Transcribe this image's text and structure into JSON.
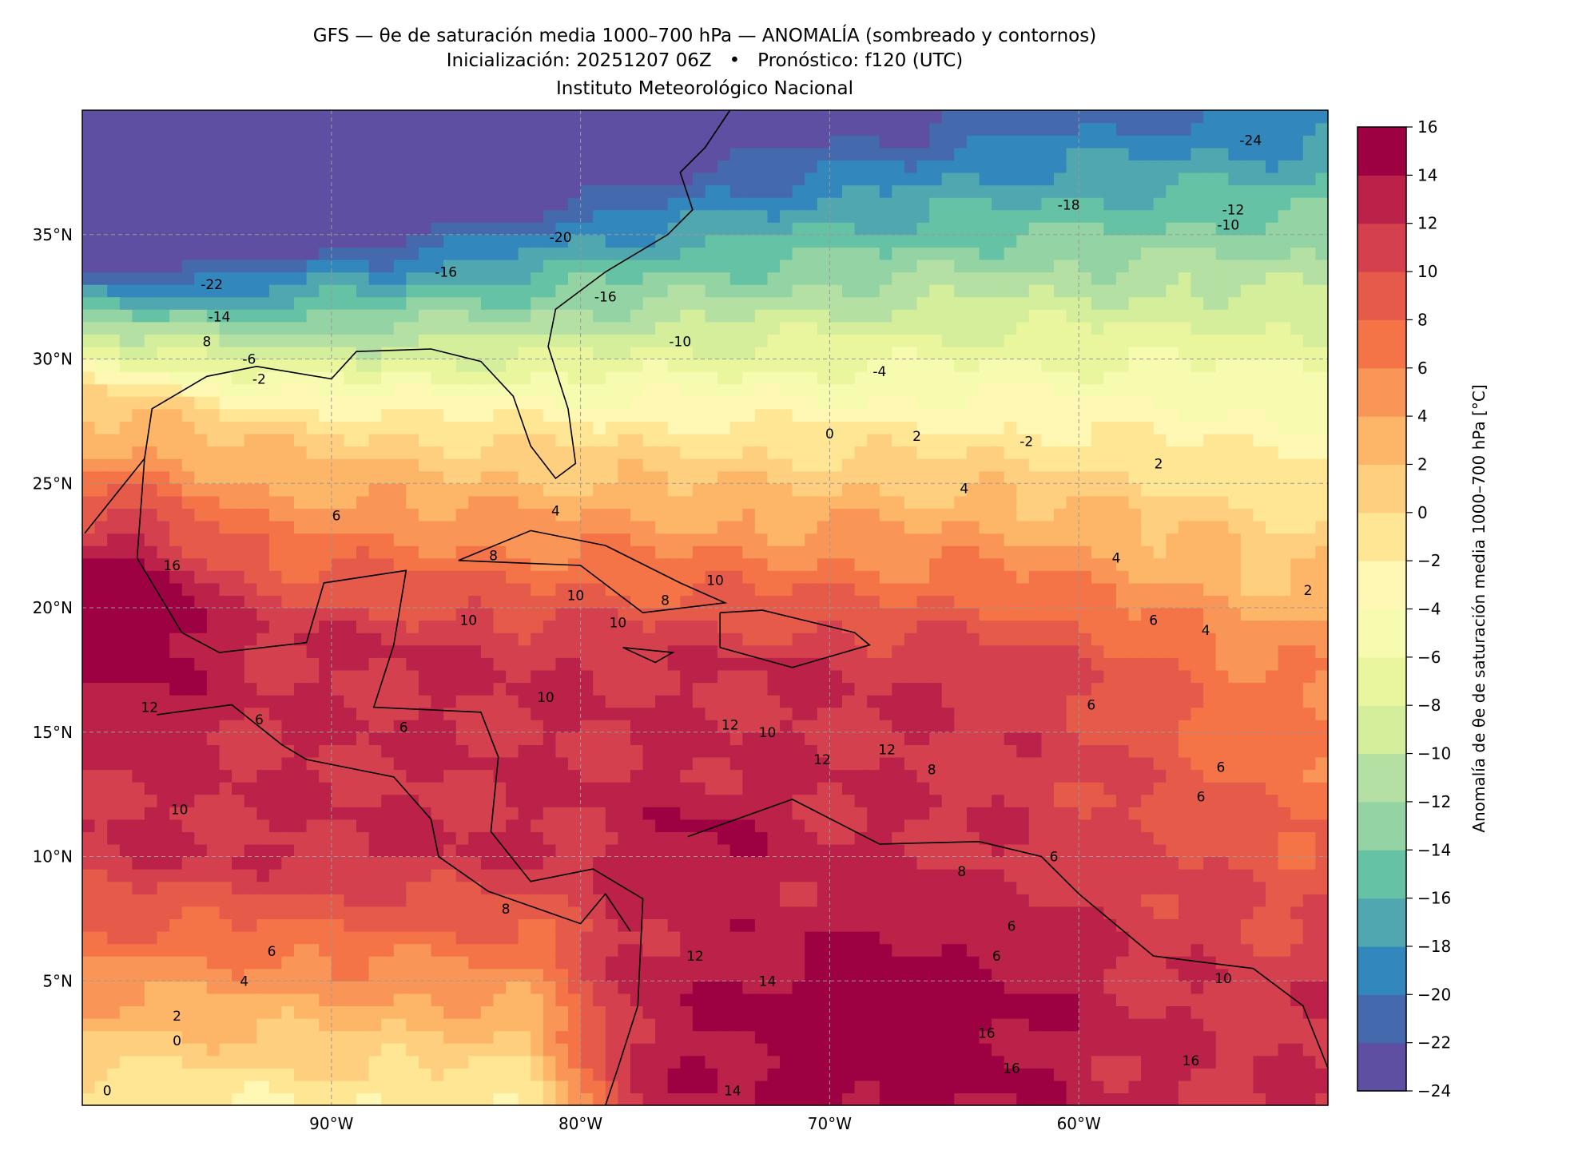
{
  "title": {
    "line1": "GFS — θe de saturación media 1000–700 hPa — ANOMALÍA (sombreado y contornos)",
    "line2": "Inicialización: 20251207 06Z   •   Pronóstico: f120 (UTC)",
    "line3": "Instituto Meteorológico Nacional"
  },
  "map": {
    "lon_range": [
      -100,
      -50
    ],
    "lat_range": [
      0,
      40
    ],
    "lat_ticks": [
      {
        "value": 35,
        "label": "35°N"
      },
      {
        "value": 30,
        "label": "30°N"
      },
      {
        "value": 25,
        "label": "25°N"
      },
      {
        "value": 20,
        "label": "20°N"
      },
      {
        "value": 15,
        "label": "15°N"
      },
      {
        "value": 10,
        "label": "10°N"
      },
      {
        "value": 5,
        "label": "5°N"
      }
    ],
    "lon_ticks": [
      {
        "value": -90,
        "label": "90°W"
      },
      {
        "value": -80,
        "label": "80°W"
      },
      {
        "value": -70,
        "label": "70°W"
      },
      {
        "value": -60,
        "label": "60°W"
      }
    ],
    "contour_labels": [
      {
        "lon": -94.8,
        "lat": 33.0,
        "text": "-22"
      },
      {
        "lon": -94.5,
        "lat": 31.7,
        "text": "-14"
      },
      {
        "lon": -95.0,
        "lat": 30.7,
        "text": "8"
      },
      {
        "lon": -93.3,
        "lat": 30.0,
        "text": "-6"
      },
      {
        "lon": -92.9,
        "lat": 29.2,
        "text": "-2"
      },
      {
        "lon": -80.8,
        "lat": 34.9,
        "text": "-20"
      },
      {
        "lon": -85.4,
        "lat": 33.5,
        "text": "-16"
      },
      {
        "lon": -60.4,
        "lat": 36.2,
        "text": "-18"
      },
      {
        "lon": -53.1,
        "lat": 38.8,
        "text": "-24"
      },
      {
        "lon": -53.8,
        "lat": 36.0,
        "text": "-12"
      },
      {
        "lon": -54.0,
        "lat": 35.4,
        "text": "-10"
      },
      {
        "lon": -79.0,
        "lat": 32.5,
        "text": "-16"
      },
      {
        "lon": -76.0,
        "lat": 30.7,
        "text": "-10"
      },
      {
        "lon": -68.0,
        "lat": 29.5,
        "text": "-4"
      },
      {
        "lon": -70.0,
        "lat": 27.0,
        "text": "0"
      },
      {
        "lon": -66.5,
        "lat": 26.9,
        "text": "2"
      },
      {
        "lon": -62.1,
        "lat": 26.7,
        "text": "-2"
      },
      {
        "lon": -56.8,
        "lat": 25.8,
        "text": "2"
      },
      {
        "lon": -64.6,
        "lat": 24.8,
        "text": "4"
      },
      {
        "lon": -81.0,
        "lat": 23.9,
        "text": "4"
      },
      {
        "lon": -89.8,
        "lat": 23.7,
        "text": "6"
      },
      {
        "lon": -83.5,
        "lat": 22.1,
        "text": "8"
      },
      {
        "lon": -80.2,
        "lat": 20.5,
        "text": "10"
      },
      {
        "lon": -78.5,
        "lat": 19.4,
        "text": "10"
      },
      {
        "lon": -84.5,
        "lat": 19.5,
        "text": "10"
      },
      {
        "lon": -76.6,
        "lat": 20.3,
        "text": "8"
      },
      {
        "lon": -74.6,
        "lat": 21.1,
        "text": "10"
      },
      {
        "lon": -81.4,
        "lat": 16.4,
        "text": "10"
      },
      {
        "lon": -74.0,
        "lat": 15.3,
        "text": "12"
      },
      {
        "lon": -72.5,
        "lat": 15.0,
        "text": "10"
      },
      {
        "lon": -70.3,
        "lat": 13.9,
        "text": "12"
      },
      {
        "lon": -67.7,
        "lat": 14.3,
        "text": "12"
      },
      {
        "lon": -65.9,
        "lat": 13.5,
        "text": "8"
      },
      {
        "lon": -96.4,
        "lat": 21.7,
        "text": "16"
      },
      {
        "lon": -97.3,
        "lat": 16.0,
        "text": "12"
      },
      {
        "lon": -92.9,
        "lat": 15.5,
        "text": "6"
      },
      {
        "lon": -87.1,
        "lat": 15.2,
        "text": "6"
      },
      {
        "lon": -96.1,
        "lat": 11.9,
        "text": "10"
      },
      {
        "lon": -83.0,
        "lat": 7.9,
        "text": "8"
      },
      {
        "lon": -92.4,
        "lat": 6.2,
        "text": "6"
      },
      {
        "lon": -93.5,
        "lat": 5.0,
        "text": "4"
      },
      {
        "lon": -96.2,
        "lat": 3.6,
        "text": "2"
      },
      {
        "lon": -96.2,
        "lat": 2.6,
        "text": "0"
      },
      {
        "lon": -99.0,
        "lat": 0.6,
        "text": "0"
      },
      {
        "lon": -75.4,
        "lat": 6.0,
        "text": "12"
      },
      {
        "lon": -72.5,
        "lat": 5.0,
        "text": "14"
      },
      {
        "lon": -73.9,
        "lat": 0.6,
        "text": "14"
      },
      {
        "lon": -63.7,
        "lat": 2.9,
        "text": "16"
      },
      {
        "lon": -62.7,
        "lat": 1.5,
        "text": "16"
      },
      {
        "lon": -55.5,
        "lat": 1.8,
        "text": "16"
      },
      {
        "lon": -61.0,
        "lat": 10.0,
        "text": "6"
      },
      {
        "lon": -62.7,
        "lat": 7.2,
        "text": "6"
      },
      {
        "lon": -63.3,
        "lat": 6.0,
        "text": "6"
      },
      {
        "lon": -64.7,
        "lat": 9.4,
        "text": "8"
      },
      {
        "lon": -54.2,
        "lat": 5.1,
        "text": "10"
      },
      {
        "lon": -59.5,
        "lat": 16.1,
        "text": "6"
      },
      {
        "lon": -57.0,
        "lat": 19.5,
        "text": "6"
      },
      {
        "lon": -54.9,
        "lat": 19.1,
        "text": "4"
      },
      {
        "lon": -55.1,
        "lat": 12.4,
        "text": "6"
      },
      {
        "lon": -54.3,
        "lat": 13.6,
        "text": "6"
      },
      {
        "lon": -58.5,
        "lat": 22.0,
        "text": "4"
      },
      {
        "lon": -50.8,
        "lat": 20.7,
        "text": "2"
      }
    ]
  },
  "colorbar": {
    "label": "Anomalía de θe de saturación media 1000–700 hPa [°C]",
    "levels": [
      -24,
      -22,
      -20,
      -18,
      -16,
      -14,
      -12,
      -10,
      -8,
      -6,
      -4,
      -2,
      0,
      2,
      4,
      6,
      8,
      10,
      12,
      14,
      16
    ],
    "tick_labels": [
      "−24",
      "−22",
      "−20",
      "−18",
      "−16",
      "−14",
      "−12",
      "−10",
      "−8",
      "−6",
      "−4",
      "−2",
      "0",
      "2",
      "4",
      "6",
      "8",
      "10",
      "12",
      "14",
      "16"
    ],
    "colors": [
      "#5e4fa2",
      "#4569ad",
      "#3288bd",
      "#50a7b0",
      "#66c2a5",
      "#94d4a4",
      "#b5e0a3",
      "#d4ee9c",
      "#e9f69d",
      "#f7fbb0",
      "#fef8b4",
      "#fee695",
      "#fecf7e",
      "#fdb567",
      "#f99657",
      "#f47447",
      "#e65a4a",
      "#d5404e",
      "#bc2249",
      "#9e0142"
    ]
  }
}
